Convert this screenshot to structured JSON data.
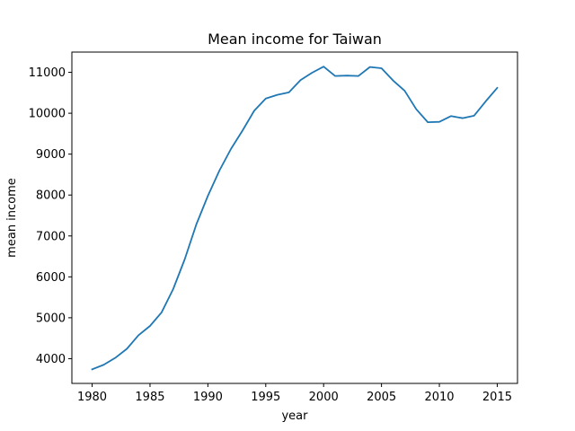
{
  "chart_data": {
    "type": "line",
    "title": "Mean income for Taiwan",
    "xlabel": "year",
    "ylabel": "mean income",
    "xlim": [
      1978.25,
      2016.75
    ],
    "ylim": [
      3395,
      11495
    ],
    "xticks": [
      1980,
      1985,
      1990,
      1995,
      2000,
      2005,
      2010,
      2015
    ],
    "yticks": [
      4000,
      5000,
      6000,
      7000,
      8000,
      9000,
      10000,
      11000
    ],
    "xtick_labels": [
      "1980",
      "1985",
      "1990",
      "1995",
      "2000",
      "2005",
      "2010",
      "2015"
    ],
    "ytick_labels": [
      "4000",
      "5000",
      "6000",
      "7000",
      "8000",
      "9000",
      "10000",
      "11000"
    ],
    "grid": false,
    "line_color": "#1f77b4",
    "series": [
      {
        "x": [
          1980,
          1981,
          1982,
          1983,
          1984,
          1985,
          1986,
          1987,
          1988,
          1989,
          1990,
          1991,
          1992,
          1993,
          1994,
          1995,
          1996,
          1997,
          1998,
          1999,
          2000,
          2001,
          2002,
          2003,
          2004,
          2005,
          2006,
          2007,
          2008,
          2009,
          2010,
          2011,
          2012,
          2013,
          2014,
          2015
        ],
        "values": [
          3740,
          3850,
          4020,
          4240,
          4570,
          4800,
          5130,
          5700,
          6430,
          7280,
          7980,
          8600,
          9130,
          9580,
          10060,
          10360,
          10450,
          10510,
          10810,
          10990,
          11140,
          10910,
          10920,
          10910,
          11130,
          11100,
          10800,
          10550,
          10100,
          9780,
          9790,
          9930,
          9880,
          9940,
          10290,
          10620
        ]
      }
    ]
  }
}
